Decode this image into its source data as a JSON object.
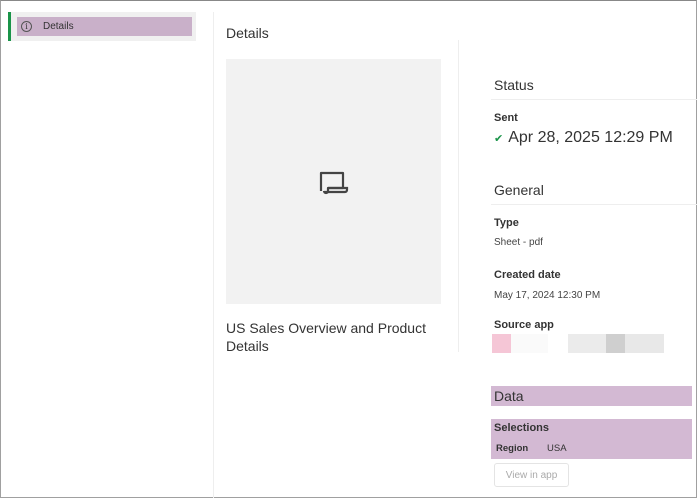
{
  "sidebar": {
    "items": [
      {
        "label": "Details",
        "icon": "info-icon"
      }
    ]
  },
  "main": {
    "heading": "Details",
    "thumbnail_icon": "sheet-icon",
    "report_title": "US Sales Overview and Product Details"
  },
  "status": {
    "heading": "Status",
    "label": "Sent",
    "value": "Apr 28, 2025 12:29 PM",
    "icon": "check-icon",
    "color": "#1a9449"
  },
  "general": {
    "heading": "General",
    "type_label": "Type",
    "type_value": "Sheet - pdf",
    "created_label": "Created date",
    "created_value": "May 17, 2024 12:30 PM",
    "source_label": "Source app"
  },
  "data": {
    "heading": "Data",
    "selections_label": "Selections",
    "field": "Region",
    "value": "USA",
    "view_button": "View in app"
  },
  "colors": {
    "highlight": "#d3b9d3",
    "accent": "#1a9449"
  }
}
